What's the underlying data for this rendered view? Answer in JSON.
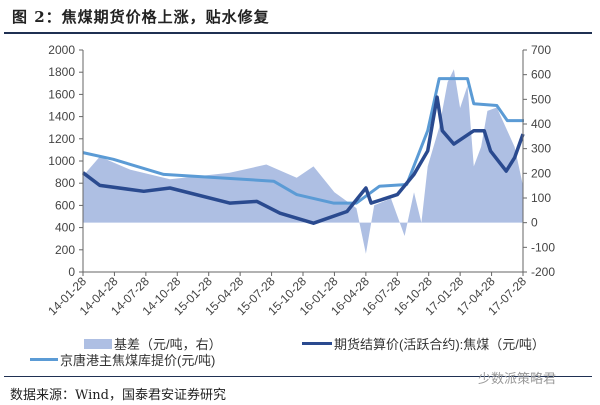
{
  "title": "图 2：焦煤期货价格上涨，贴水修复",
  "source": "数据来源：Wind，国泰君安证券研究",
  "watermark": "少数派策略君",
  "colors": {
    "basis": "#aebfe3",
    "futures": "#2a4a8f",
    "spot": "#5b9bd5",
    "rule": "#1f3052"
  },
  "chart_data": {
    "type": "line",
    "title": "图 2：焦煤期货价格上涨，贴水修复",
    "x_unit": "months since 14-01-28",
    "x_ticks": [
      "14-01-28",
      "14-04-28",
      "14-07-28",
      "14-10-28",
      "15-01-28",
      "15-04-28",
      "15-07-28",
      "15-10-28",
      "16-01-28",
      "16-04-28",
      "16-07-28",
      "16-10-28",
      "17-01-28",
      "17-04-28",
      "17-07-28"
    ],
    "y_left": {
      "range": [
        0,
        2000
      ],
      "ticks": [
        "0",
        "200",
        "400",
        "600",
        "800",
        "1000",
        "1200",
        "1400",
        "1600",
        "1800",
        "2000"
      ]
    },
    "y_right": {
      "range": [
        -200,
        700
      ],
      "ticks": [
        "-200",
        "-100",
        "0",
        "100",
        "200",
        "300",
        "400",
        "500",
        "600",
        "700"
      ]
    },
    "series": [
      {
        "name": "基差（元/吨，右）",
        "type": "area",
        "axis": "right",
        "points": [
          [
            0,
            189
          ],
          [
            1.6,
            268
          ],
          [
            4.5,
            215
          ],
          [
            8.3,
            176
          ],
          [
            14,
            202
          ],
          [
            17.5,
            236
          ],
          [
            20.4,
            182
          ],
          [
            22,
            228
          ],
          [
            24,
            123
          ],
          [
            26.1,
            59
          ],
          [
            27,
            -126
          ],
          [
            27.8,
            71
          ],
          [
            29.4,
            98
          ],
          [
            30.7,
            -54
          ],
          [
            31.6,
            123
          ],
          [
            32.3,
            0
          ],
          [
            32.9,
            228
          ],
          [
            34,
            386
          ],
          [
            34.8,
            570
          ],
          [
            35.4,
            622
          ],
          [
            36,
            465
          ],
          [
            36.7,
            556
          ],
          [
            37.3,
            228
          ],
          [
            38,
            307
          ],
          [
            38.6,
            453
          ],
          [
            39.5,
            467
          ],
          [
            41.2,
            307
          ],
          [
            42,
            150
          ]
        ]
      },
      {
        "name": "期货结算价(活跃合约):焦煤（元/吨）",
        "type": "line",
        "axis": "left",
        "points": [
          [
            0,
            895
          ],
          [
            1.6,
            780
          ],
          [
            5.8,
            727
          ],
          [
            8.3,
            757
          ],
          [
            14,
            621
          ],
          [
            16.6,
            636
          ],
          [
            18.8,
            530
          ],
          [
            22,
            440
          ],
          [
            25.2,
            545
          ],
          [
            27,
            757
          ],
          [
            27.5,
            621
          ],
          [
            30,
            697
          ],
          [
            31.6,
            879
          ],
          [
            32.9,
            1091
          ],
          [
            33.8,
            1576
          ],
          [
            34.3,
            1273
          ],
          [
            35.4,
            1152
          ],
          [
            37.3,
            1273
          ],
          [
            38.3,
            1273
          ],
          [
            38.9,
            1091
          ],
          [
            40.4,
            909
          ],
          [
            41.2,
            1030
          ],
          [
            42,
            1242
          ]
        ]
      },
      {
        "name": "京唐港主焦煤库提价(元/吨)",
        "type": "line",
        "axis": "left",
        "points": [
          [
            0,
            1076
          ],
          [
            2.9,
            1015
          ],
          [
            7.7,
            879
          ],
          [
            13.1,
            848
          ],
          [
            18.2,
            818
          ],
          [
            20.4,
            697
          ],
          [
            23.9,
            621
          ],
          [
            26.1,
            621
          ],
          [
            28.3,
            773
          ],
          [
            30.9,
            788
          ],
          [
            32.9,
            1273
          ],
          [
            34,
            1742
          ],
          [
            36.7,
            1742
          ],
          [
            37.3,
            1515
          ],
          [
            39.5,
            1500
          ],
          [
            40.5,
            1364
          ],
          [
            42.1,
            1364
          ]
        ]
      }
    ],
    "legend_position": "bottom"
  }
}
